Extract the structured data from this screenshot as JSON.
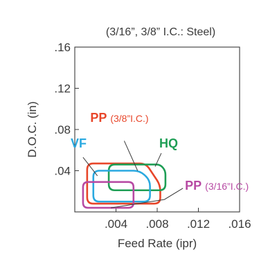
{
  "chart_data": {
    "type": "area",
    "title": "(3/16”, 3/8” I.C.: Steel)",
    "xlabel": "Feed Rate (ipr)",
    "ylabel": "D.O.C. (in)",
    "xlim": [
      0,
      0.016
    ],
    "ylim": [
      0,
      0.16
    ],
    "x_ticks": [
      {
        "value": 0.004,
        "label": ".004"
      },
      {
        "value": 0.008,
        "label": ".008"
      },
      {
        "value": 0.012,
        "label": ".012"
      },
      {
        "value": 0.016,
        "label": ".016"
      }
    ],
    "y_ticks": [
      {
        "value": 0.04,
        "label": ".04"
      },
      {
        "value": 0.08,
        "label": ".08"
      },
      {
        "value": 0.12,
        "label": ".12"
      },
      {
        "value": 0.16,
        "label": ".16"
      }
    ],
    "grid": false,
    "regions": [
      {
        "name": "PP",
        "detail": "(3/8”I.C.)",
        "color": "#e8462a",
        "radius": 0.0006,
        "points": [
          [
            0.0012,
            0.008
          ],
          [
            0.0083,
            0.008
          ],
          [
            0.0083,
            0.026
          ],
          [
            0.0069,
            0.047
          ],
          [
            0.0012,
            0.047
          ]
        ]
      },
      {
        "name": "HQ",
        "detail": "",
        "color": "#1e9e55",
        "radius": 0.0006,
        "points": [
          [
            0.0033,
            0.021
          ],
          [
            0.0088,
            0.021
          ],
          [
            0.0088,
            0.04
          ],
          [
            0.0083,
            0.046
          ],
          [
            0.0033,
            0.046
          ]
        ]
      },
      {
        "name": "VF",
        "detail": "",
        "color": "#2aa9e0",
        "radius": 0.0006,
        "points": [
          [
            0.0018,
            0.01
          ],
          [
            0.0073,
            0.01
          ],
          [
            0.0073,
            0.031
          ],
          [
            0.0063,
            0.04
          ],
          [
            0.0018,
            0.04
          ]
        ]
      },
      {
        "name": "PP",
        "detail": "(3/16”I.C.)",
        "color": "#b74aa3",
        "radius": 0.0005,
        "points": [
          [
            0.0008,
            0.004
          ],
          [
            0.0057,
            0.004
          ],
          [
            0.0057,
            0.029
          ],
          [
            0.0008,
            0.029
          ]
        ]
      }
    ],
    "annotations": [
      {
        "region": 0,
        "label_pos": [
          0.0015,
          0.0875
        ],
        "leader": [
          [
            0.0048,
            0.069
          ],
          [
            0.0061,
            0.04
          ]
        ],
        "detail_offset": 0.0014
      },
      {
        "region": 1,
        "label_pos": [
          0.0082,
          0.0625
        ],
        "leader": [
          [
            0.0084,
            0.057
          ],
          [
            0.0078,
            0.044
          ]
        ],
        "detail_offset": 0
      },
      {
        "region": 2,
        "label_pos": [
          -0.0004,
          0.0625
        ],
        "leader": [
          [
            0.0008,
            0.053
          ],
          [
            0.0022,
            0.035
          ]
        ],
        "detail_offset": 0
      },
      {
        "region": 3,
        "label_pos": [
          0.0107,
          0.0215
        ],
        "leader": [
          [
            0.0105,
            0.023
          ],
          [
            0.0087,
            0.012
          ],
          [
            0.0035,
            0.004
          ]
        ],
        "detail_offset": 0.0015
      }
    ]
  }
}
